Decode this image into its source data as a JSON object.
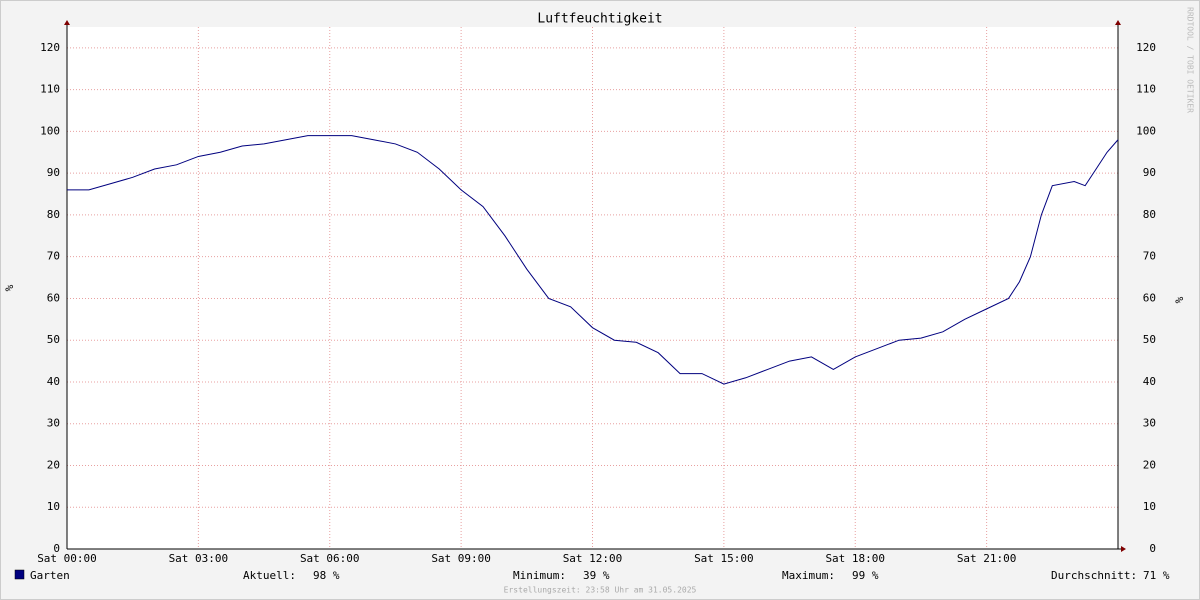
{
  "chart_data": {
    "type": "line",
    "title": "Luftfeuchtigkeit",
    "ylabel": "%",
    "y2label": "%",
    "side_text": "RRDTOOL / TOBI OETIKER",
    "x": [
      0,
      0.5,
      1.0,
      1.5,
      2.0,
      2.5,
      3.0,
      3.5,
      4.0,
      4.5,
      5.0,
      5.5,
      6.0,
      6.5,
      7.0,
      7.5,
      8.0,
      8.5,
      9.0,
      9.5,
      10.0,
      10.5,
      11.0,
      11.5,
      12.0,
      12.5,
      13.0,
      13.5,
      14.0,
      14.5,
      15.0,
      15.5,
      16.0,
      16.5,
      17.0,
      17.5,
      18.0,
      18.5,
      19.0,
      19.5,
      20.0,
      20.5,
      21.0,
      21.5,
      21.75,
      22.0,
      22.25,
      22.5,
      23.0,
      23.25,
      23.5,
      23.75,
      24.0
    ],
    "series": [
      {
        "name": "Garten",
        "color": "#00007f",
        "values": [
          86,
          86,
          87.5,
          89,
          91,
          92,
          94,
          95,
          96.5,
          97,
          98,
          99,
          99,
          99,
          98,
          97,
          95,
          91,
          86,
          82,
          75,
          67,
          60,
          58,
          53,
          50,
          49.5,
          47,
          42,
          42,
          39.5,
          41,
          43,
          45,
          46,
          43,
          46,
          48,
          50,
          50.5,
          52,
          55,
          57.5,
          60,
          64,
          70,
          80,
          87,
          88,
          87,
          91,
          95,
          98
        ]
      }
    ],
    "xlim": [
      0,
      24
    ],
    "xticks": [
      {
        "value": 0,
        "label": "Sat 00:00"
      },
      {
        "value": 3,
        "label": "Sat 03:00"
      },
      {
        "value": 6,
        "label": "Sat 06:00"
      },
      {
        "value": 9,
        "label": "Sat 09:00"
      },
      {
        "value": 12,
        "label": "Sat 12:00"
      },
      {
        "value": 15,
        "label": "Sat 15:00"
      },
      {
        "value": 18,
        "label": "Sat 18:00"
      },
      {
        "value": 21,
        "label": "Sat 21:00"
      }
    ],
    "ylim": [
      0,
      125
    ],
    "yticks": [
      0,
      10,
      20,
      30,
      40,
      50,
      60,
      70,
      80,
      90,
      100,
      110,
      120
    ],
    "y2lim": [
      0,
      125
    ],
    "y2ticks": [
      0,
      10,
      20,
      30,
      40,
      50,
      60,
      70,
      80,
      90,
      100,
      110,
      120
    ],
    "grid": true,
    "stats": [
      {
        "label": "Aktuell:",
        "value": "98 %"
      },
      {
        "label": "Minimum:",
        "value": "39 %"
      },
      {
        "label": "Maximum:",
        "value": "99 %"
      },
      {
        "label": "Durchschnitt:",
        "value": "71 %"
      }
    ],
    "footer": "Erstellungszeit: 23:58 Uhr am 31.05.2025"
  }
}
